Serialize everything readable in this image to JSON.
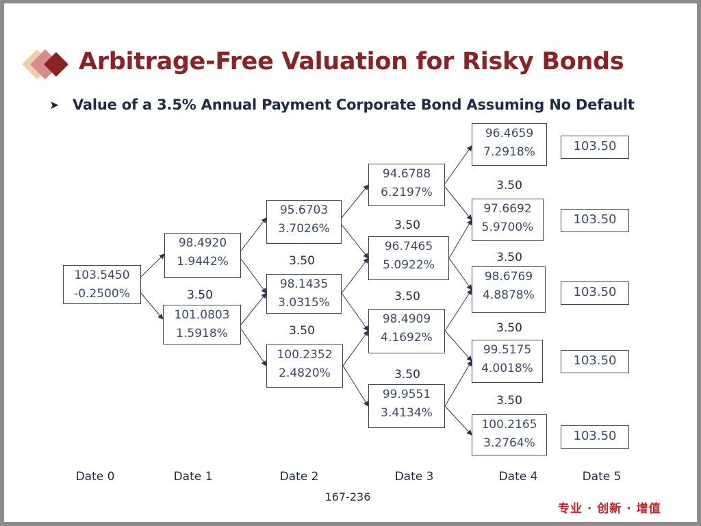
{
  "title": "Arbitrage-Free Valuation for Risky Bonds",
  "subtitle": "Value of a 3.5% Annual Payment Corporate Bond Assuming No Default",
  "bullet_icon": "arrowhead-bullet-icon",
  "colors": {
    "title": "#8b2326",
    "accent_diamond_dark": "#8b2326",
    "accent_diamond_mid": "#d98c8c",
    "accent_diamond_light": "#f1cfa8",
    "motto": "#cc2127"
  },
  "tree": {
    "date0": [
      {
        "value": "103.5450",
        "rate": "-0.2500%"
      }
    ],
    "date1": [
      {
        "value": "98.4920",
        "rate": "1.9442%"
      },
      {
        "value": "101.0803",
        "rate": "1.5918%"
      }
    ],
    "date2": [
      {
        "value": "95.6703",
        "rate": "3.7026%"
      },
      {
        "value": "98.1435",
        "rate": "3.0315%"
      },
      {
        "value": "100.2352",
        "rate": "2.4820%"
      }
    ],
    "date3": [
      {
        "value": "94.6788",
        "rate": "6.2197%"
      },
      {
        "value": "96.7465",
        "rate": "5.0922%"
      },
      {
        "value": "98.4909",
        "rate": "4.1692%"
      },
      {
        "value": "99.9551",
        "rate": "3.4134%"
      }
    ],
    "date4": [
      {
        "value": "96.4659",
        "rate": "7.2918%"
      },
      {
        "value": "97.6692",
        "rate": "5.9700%"
      },
      {
        "value": "98.6769",
        "rate": "4.8878%"
      },
      {
        "value": "99.5175",
        "rate": "4.0018%"
      },
      {
        "value": "100.2165",
        "rate": "3.2764%"
      }
    ],
    "date5": [
      "103.50",
      "103.50",
      "103.50",
      "103.50",
      "103.50"
    ],
    "coupon": "3.50"
  },
  "dates": [
    "Date 0",
    "Date 1",
    "Date 2",
    "Date 3",
    "Date 4",
    "Date 5"
  ],
  "page_number": "167-236",
  "footer_motto": "专业 · 创新 · 增值"
}
